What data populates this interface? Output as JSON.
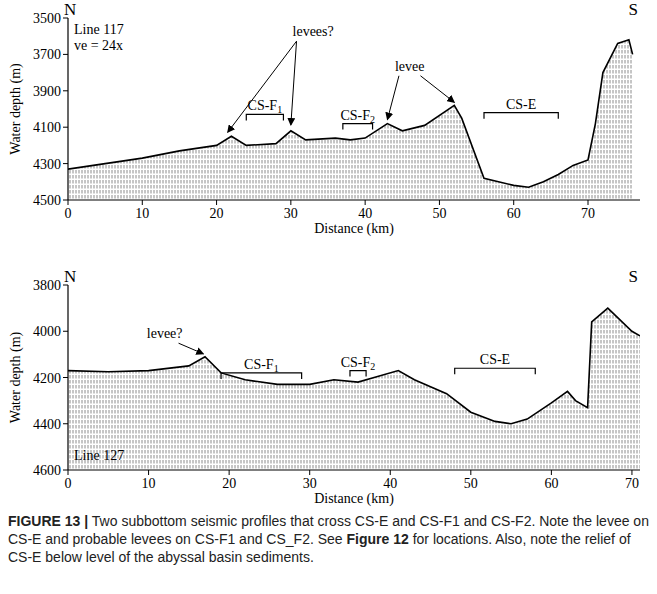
{
  "chart_data": [
    {
      "type": "line",
      "labels": {
        "north": "N",
        "south": "S",
        "line": "Line 117",
        "ve": "ve = 24x"
      },
      "x_label": "Distance (km)",
      "y_label": "Water depth (m)",
      "xlim": [
        0,
        77
      ],
      "ylim": [
        4500,
        3500
      ],
      "xticks": [
        0,
        10,
        20,
        30,
        40,
        50,
        60,
        70
      ],
      "yticks": [
        3500,
        3700,
        3900,
        4100,
        4300,
        4500
      ],
      "x": [
        0,
        5,
        10,
        15,
        20,
        22,
        24,
        28,
        30,
        32,
        36,
        38,
        40,
        43,
        45,
        48,
        52,
        53,
        56,
        60,
        62,
        64,
        66,
        68,
        70,
        71,
        72,
        74,
        75.5,
        76
      ],
      "series": [
        {
          "color": "#000000",
          "values": [
            4330,
            4300,
            4270,
            4230,
            4200,
            4150,
            4200,
            4190,
            4120,
            4170,
            4160,
            4170,
            4160,
            4080,
            4120,
            4090,
            3980,
            4050,
            4380,
            4420,
            4430,
            4400,
            4360,
            4310,
            4280,
            4080,
            3800,
            3640,
            3620,
            3700
          ]
        }
      ],
      "annotations": [
        {
          "text": "levees?",
          "x": 33,
          "y": 3600,
          "arrows": [
            [
              21.5,
              4150
            ],
            [
              30,
              4110
            ]
          ]
        },
        {
          "text": "levee",
          "x": 46,
          "y": 3790,
          "arrows": [
            [
              43,
              4080
            ],
            [
              52,
              3985
            ]
          ]
        }
      ],
      "brackets": [
        {
          "text": "CS-F",
          "sub": "1",
          "x": [
            24,
            29
          ],
          "y": 4030
        },
        {
          "text": "CS-F",
          "sub": "2",
          "x": [
            37,
            41
          ],
          "y": 4080
        },
        {
          "text": "CS-E",
          "x": [
            56,
            66
          ],
          "y": 4020
        }
      ]
    },
    {
      "type": "line",
      "labels": {
        "north": "N",
        "south": "S",
        "line": "Line 127"
      },
      "x_label": "Distance (km)",
      "y_label": "Water depth (m)",
      "xlim": [
        0,
        71
      ],
      "ylim": [
        4600,
        3800
      ],
      "xticks": [
        0,
        10,
        20,
        30,
        40,
        50,
        60,
        70
      ],
      "yticks": [
        3800,
        4000,
        4200,
        4400,
        4600
      ],
      "x": [
        0,
        5,
        10,
        15,
        17,
        19,
        22,
        26,
        30,
        33,
        36,
        38,
        41,
        43,
        45,
        47,
        50,
        53,
        55,
        57,
        60,
        62,
        63,
        64.5,
        65,
        67,
        70,
        71
      ],
      "series": [
        {
          "color": "#000000",
          "values": [
            4170,
            4175,
            4170,
            4150,
            4110,
            4180,
            4210,
            4230,
            4230,
            4210,
            4220,
            4200,
            4170,
            4210,
            4240,
            4270,
            4350,
            4390,
            4400,
            4380,
            4310,
            4260,
            4300,
            4330,
            3960,
            3900,
            4000,
            4020
          ]
        }
      ],
      "annotations": [
        {
          "text": "levee?",
          "x": 12,
          "y": 4030,
          "arrows": [
            [
              16.8,
              4115
            ]
          ]
        }
      ],
      "brackets": [
        {
          "text": "CS-F",
          "sub": "1",
          "x": [
            19,
            29
          ],
          "y": 4180
        },
        {
          "text": "CS-F",
          "sub": "2",
          "x": [
            35,
            37
          ],
          "y": 4170
        },
        {
          "text": "CS-E",
          "x": [
            48,
            58
          ],
          "y": 4160
        }
      ]
    }
  ],
  "caption": {
    "label": "FIGURE 13 |",
    "parts": [
      "Two subbottom seismic profiles that cross CS-E and CS-F1 and CS-F2. Note the levee on CS-E and probable levees on CS-F1 and CS_F2. See ",
      "Figure 12",
      " for locations. Also, note the relief of CS-E below level of the abyssal basin sediments."
    ]
  }
}
